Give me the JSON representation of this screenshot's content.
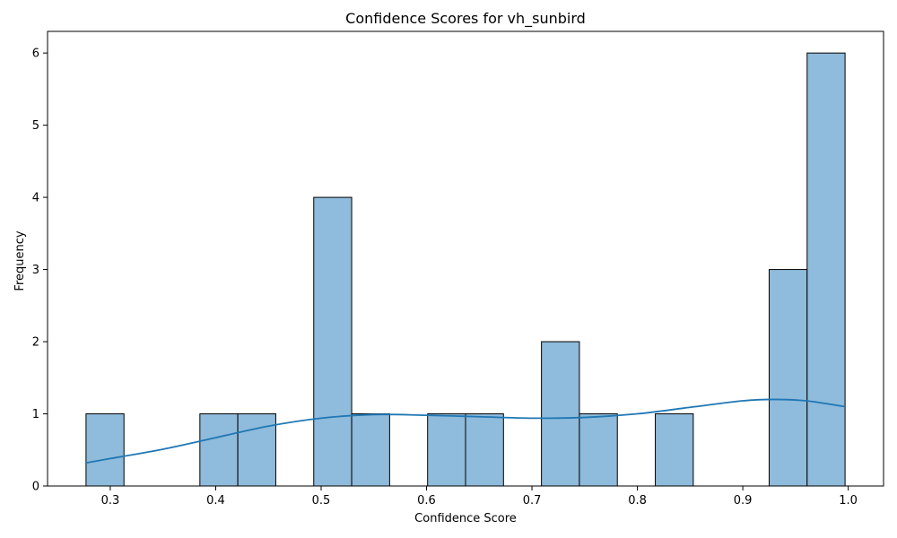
{
  "chart_data": {
    "type": "histogram",
    "title": "Confidence Scores for vh_sunbird",
    "xlabel": "Confidence Score",
    "ylabel": "Frequency",
    "xlim": [
      0.2405,
      1.0335
    ],
    "ylim": [
      0,
      6.3
    ],
    "x_ticks": [
      0.3,
      0.4,
      0.5,
      0.6,
      0.7,
      0.8,
      0.9,
      1.0
    ],
    "x_tick_labels": [
      "0.3",
      "0.4",
      "0.5",
      "0.6",
      "0.7",
      "0.8",
      "0.9",
      "1.0"
    ],
    "y_ticks": [
      0,
      1,
      2,
      3,
      4,
      5,
      6
    ],
    "y_tick_labels": [
      "0",
      "1",
      "2",
      "3",
      "4",
      "5",
      "6"
    ],
    "bins": [
      {
        "x0": 0.277,
        "x1": 0.313,
        "count": 1
      },
      {
        "x0": 0.313,
        "x1": 0.349,
        "count": 0
      },
      {
        "x0": 0.349,
        "x1": 0.385,
        "count": 0
      },
      {
        "x0": 0.385,
        "x1": 0.421,
        "count": 1
      },
      {
        "x0": 0.421,
        "x1": 0.457,
        "count": 1
      },
      {
        "x0": 0.457,
        "x1": 0.493,
        "count": 0
      },
      {
        "x0": 0.493,
        "x1": 0.529,
        "count": 4
      },
      {
        "x0": 0.529,
        "x1": 0.565,
        "count": 1
      },
      {
        "x0": 0.565,
        "x1": 0.601,
        "count": 0
      },
      {
        "x0": 0.601,
        "x1": 0.637,
        "count": 1
      },
      {
        "x0": 0.637,
        "x1": 0.673,
        "count": 1
      },
      {
        "x0": 0.673,
        "x1": 0.709,
        "count": 0
      },
      {
        "x0": 0.709,
        "x1": 0.745,
        "count": 2
      },
      {
        "x0": 0.745,
        "x1": 0.781,
        "count": 1
      },
      {
        "x0": 0.781,
        "x1": 0.817,
        "count": 0
      },
      {
        "x0": 0.817,
        "x1": 0.853,
        "count": 1
      },
      {
        "x0": 0.853,
        "x1": 0.889,
        "count": 0
      },
      {
        "x0": 0.889,
        "x1": 0.925,
        "count": 0
      },
      {
        "x0": 0.925,
        "x1": 0.961,
        "count": 3
      },
      {
        "x0": 0.961,
        "x1": 0.997,
        "count": 6
      }
    ],
    "kde_curve": {
      "x": [
        0.277,
        0.3,
        0.35,
        0.4,
        0.45,
        0.5,
        0.55,
        0.6,
        0.65,
        0.7,
        0.75,
        0.8,
        0.85,
        0.9,
        0.93,
        0.96,
        0.997
      ],
      "y": [
        0.32,
        0.38,
        0.51,
        0.67,
        0.83,
        0.94,
        0.99,
        0.98,
        0.96,
        0.94,
        0.95,
        1.0,
        1.09,
        1.18,
        1.2,
        1.18,
        1.1
      ]
    },
    "grid": false,
    "legend": false,
    "colors": {
      "bar_fill": "#8fbbdc",
      "bar_edge": "#000000",
      "kde_line": "#1f77b4",
      "axes": "#000000"
    }
  }
}
